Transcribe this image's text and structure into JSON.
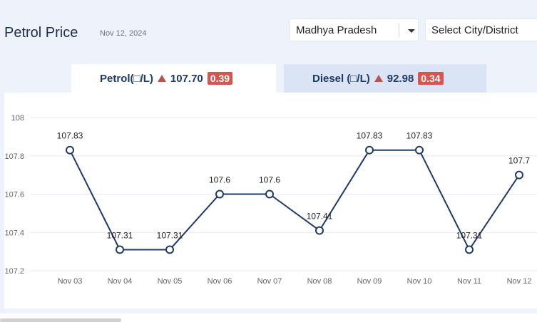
{
  "header": {
    "title": "Petrol Price",
    "date": "Nov 12, 2024"
  },
  "selects": {
    "state_value": "Madhya Pradesh",
    "city_placeholder": "Select City/District"
  },
  "tabs": {
    "petrol": {
      "label": "Petrol(□/L)",
      "price": "107.70",
      "change": "0.39"
    },
    "diesel": {
      "label": "Diesel (□/L)",
      "price": "92.98",
      "change": "0.34"
    }
  },
  "colors": {
    "line": "#1f3a66",
    "grid": "#e6e9ef",
    "badge": "#d9534f",
    "active_tab": "#ffffff",
    "inactive_tab": "#dbe4f4"
  },
  "chart_data": {
    "type": "line",
    "categories": [
      "Nov 03",
      "Nov 04",
      "Nov 05",
      "Nov 06",
      "Nov 07",
      "Nov 08",
      "Nov 09",
      "Nov 10",
      "Nov 11",
      "Nov 12"
    ],
    "values": [
      107.83,
      107.31,
      107.31,
      107.6,
      107.6,
      107.41,
      107.83,
      107.83,
      107.31,
      107.7
    ],
    "value_labels": [
      "107.83",
      "107.31",
      "107.31",
      "107.6",
      "107.6",
      "107.41",
      "107.83",
      "107.83",
      "107.31",
      "107.7"
    ],
    "y_ticks": [
      "108",
      "107.8",
      "107.6",
      "107.4",
      "107.2"
    ],
    "ylim": [
      107.2,
      108
    ],
    "grid": true
  }
}
